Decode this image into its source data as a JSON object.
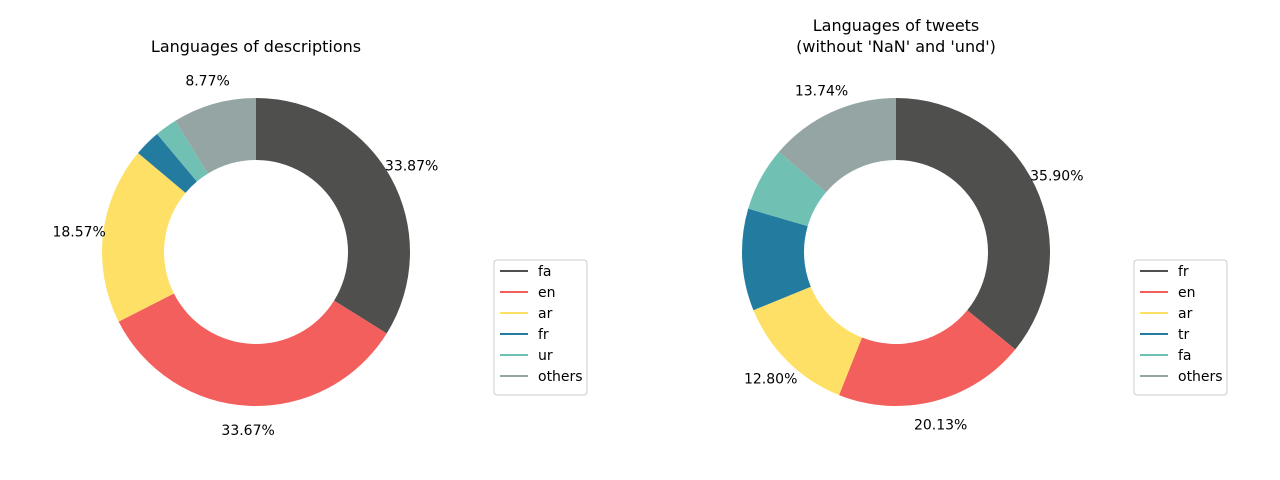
{
  "chart_data": [
    {
      "type": "pie",
      "donut": true,
      "title": "Languages of descriptions",
      "categories": [
        "fa",
        "en",
        "ar",
        "fr",
        "ur",
        "others"
      ],
      "values": [
        33.87,
        33.67,
        18.57,
        2.79,
        2.33,
        8.77
      ],
      "labels": [
        "33.87%",
        "33.67%",
        "18.57%",
        "",
        "",
        "8.77%"
      ],
      "colors": [
        "#4f4f4d",
        "#f25f5c",
        "#ffe066",
        "#247ba0",
        "#70c1b3",
        "#95a5a3"
      ],
      "legend_position": "right",
      "start_angle": "top",
      "direction": "clockwise"
    },
    {
      "type": "pie",
      "donut": true,
      "title": "Languages of tweets\n(without 'NaN' and 'und')",
      "categories": [
        "fr",
        "en",
        "ar",
        "tr",
        "fa",
        "others"
      ],
      "values": [
        35.9,
        20.13,
        12.8,
        10.71,
        6.72,
        13.74
      ],
      "labels": [
        "35.90%",
        "20.13%",
        "12.80%",
        "",
        "",
        "13.74%"
      ],
      "colors": [
        "#4f4f4d",
        "#f25f5c",
        "#ffe066",
        "#247ba0",
        "#70c1b3",
        "#95a5a3"
      ],
      "legend_position": "right",
      "start_angle": "top",
      "direction": "clockwise"
    }
  ]
}
